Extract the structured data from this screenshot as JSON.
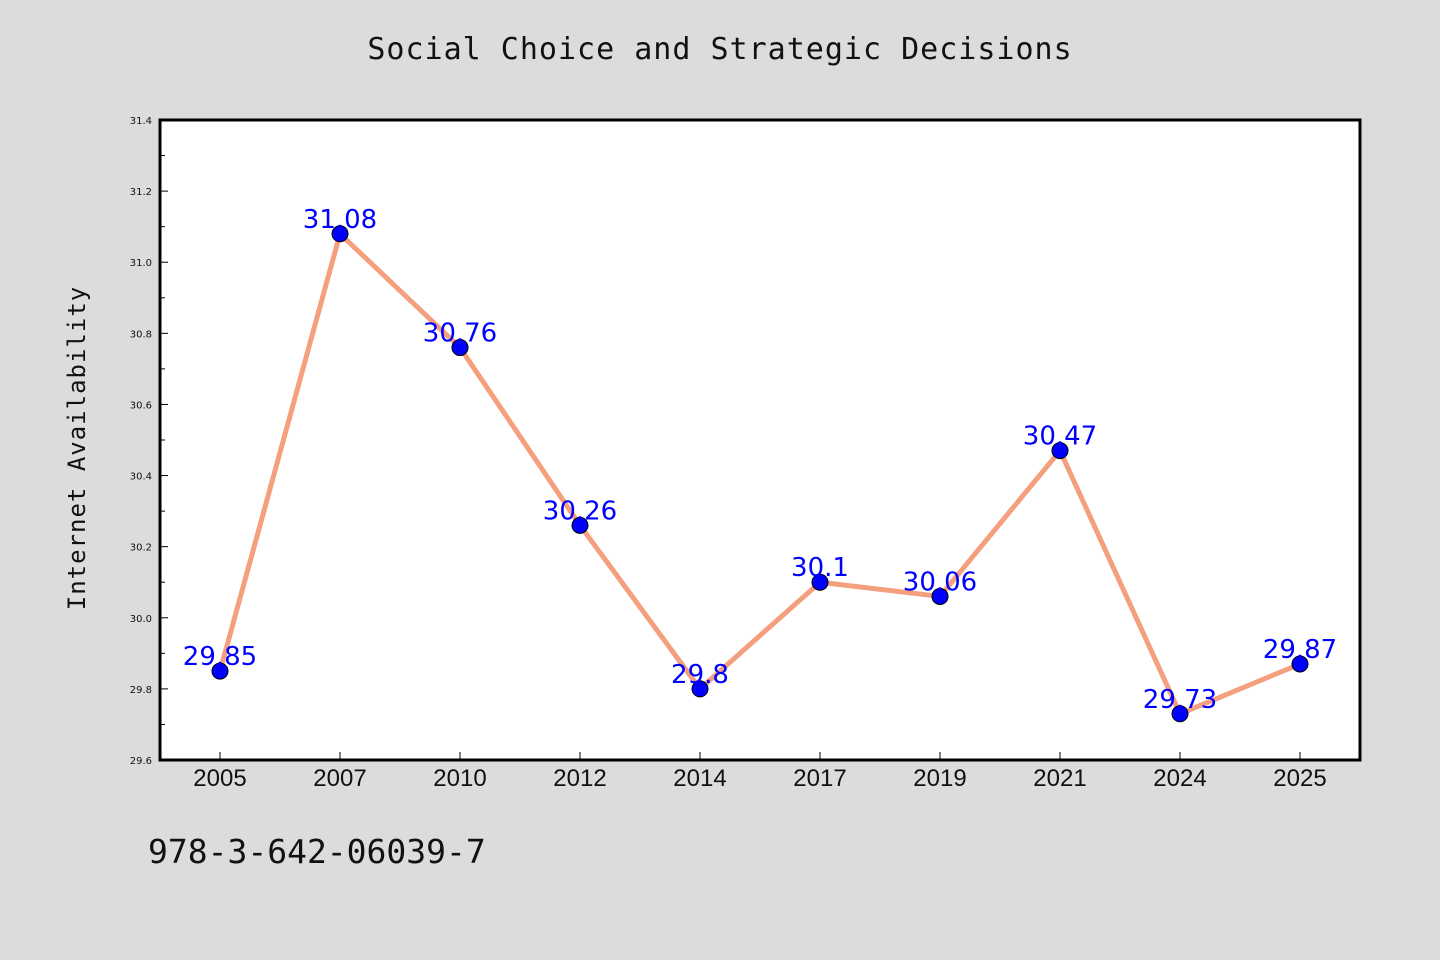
{
  "chart_data": {
    "type": "line",
    "title": "Social Choice and Strategic Decisions",
    "xlabel": "",
    "ylabel": "Internet Availability",
    "categories": [
      "2005",
      "2007",
      "2010",
      "2012",
      "2014",
      "2017",
      "2019",
      "2021",
      "2024",
      "2025"
    ],
    "series": [
      {
        "values": [
          29.85,
          31.08,
          30.76,
          30.26,
          29.8,
          30.1,
          30.06,
          30.47,
          29.73,
          29.87
        ],
        "data_labels": [
          "29.85",
          "31.08",
          "30.76",
          "30.26",
          "29.8",
          "30.1",
          "30.06",
          "30.47",
          "29.73",
          "29.87"
        ],
        "line_color": "#f4a07f",
        "marker_color": "#0000ff"
      }
    ],
    "ylim": [
      29.6,
      31.4
    ],
    "yticks": [
      "29.6",
      "29.8",
      "30.0",
      "30.2",
      "30.4",
      "30.6",
      "30.8",
      "31.0",
      "31.2",
      "31.4"
    ],
    "grid": false,
    "legend": "none"
  },
  "footer": {
    "isbn": "978-3-642-06039-7"
  },
  "colors": {
    "background": "#dcdcdc",
    "plot_background": "#ffffff",
    "line": "#f4a07f",
    "marker": "#0000ff",
    "label": "#0000ff"
  }
}
